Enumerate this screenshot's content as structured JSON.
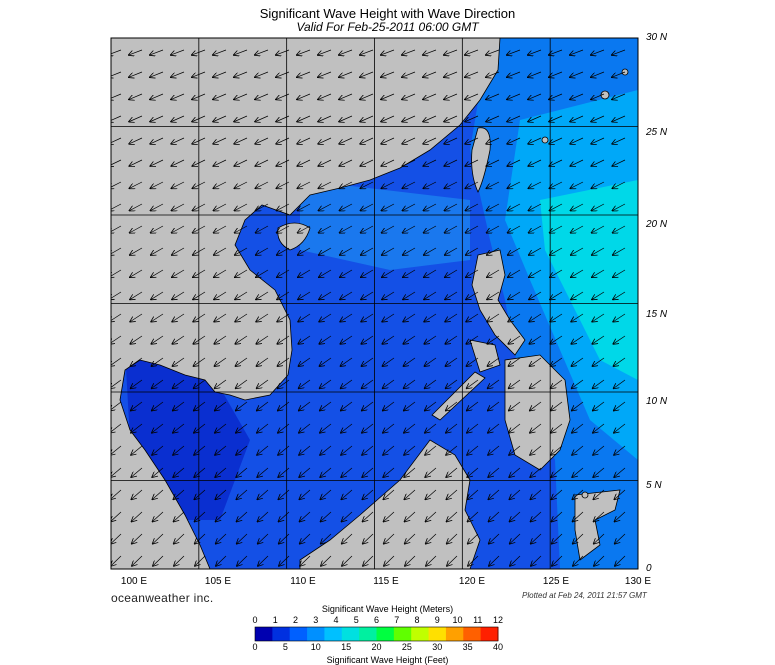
{
  "header": {
    "title": "Significant Wave Height with Wave Direction",
    "subtitle": "Valid For Feb-25-2011 06:00 GMT"
  },
  "map": {
    "lat_labels": [
      "30 N",
      "25 N",
      "20 N",
      "15 N",
      "10 N",
      "5 N",
      "0"
    ],
    "lon_labels": [
      "100 E",
      "105 E",
      "110 E",
      "115 E",
      "120 E",
      "125 E",
      "130 E"
    ],
    "lat_range": [
      0,
      30
    ],
    "lon_range": [
      100,
      130
    ],
    "land_color": "#c0c0c0",
    "sea_color": "#1a4fe0",
    "grid_color": "#000000",
    "arrow_direction": "toward-southwest"
  },
  "branding": {
    "brand_text": "oceanweather inc.",
    "plotted_text": "Plotted at Feb 24, 2011 21:57 GMT"
  },
  "legend": {
    "title_meters": "Significant Wave Height (Meters)",
    "title_feet": "Significant Wave Height (Feet)",
    "meter_ticks": [
      "0",
      "1",
      "2",
      "3",
      "4",
      "5",
      "6",
      "7",
      "8",
      "9",
      "10",
      "11",
      "12"
    ],
    "feet_ticks": [
      "0",
      "5",
      "10",
      "15",
      "20",
      "25",
      "30",
      "35",
      "40"
    ],
    "colors": [
      "#0000b0",
      "#0030e0",
      "#0060ff",
      "#0090ff",
      "#00c0ff",
      "#00e0e0",
      "#00f0a0",
      "#00ff40",
      "#60ff00",
      "#c0ff00",
      "#ffe000",
      "#ffa000",
      "#ff6000",
      "#ff2000"
    ]
  }
}
